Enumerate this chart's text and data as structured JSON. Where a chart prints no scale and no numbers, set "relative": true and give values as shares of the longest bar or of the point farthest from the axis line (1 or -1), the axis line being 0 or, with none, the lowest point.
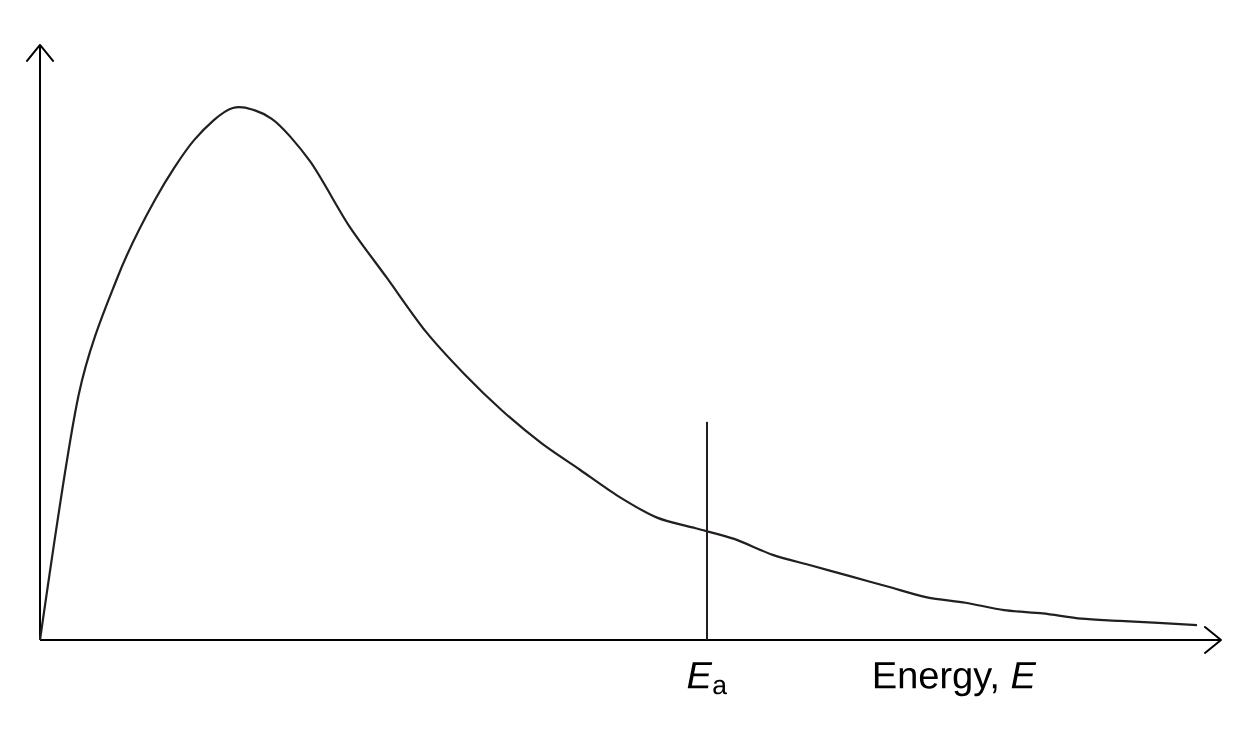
{
  "chart_data": {
    "type": "line",
    "relative": true,
    "color": "#231f20",
    "line_style": "solid",
    "categories": [
      null,
      null,
      null,
      null,
      null,
      null,
      null,
      null,
      null,
      null,
      null,
      null,
      null,
      null,
      null,
      null,
      null,
      null,
      null,
      null,
      null,
      null,
      null,
      null,
      null,
      null,
      null,
      null,
      null,
      null,
      null
    ],
    "values": [
      0,
      0.46,
      0.68,
      0.83,
      0.94,
      1.0,
      0.98,
      0.9,
      0.78,
      0.68,
      0.58,
      0.5,
      0.43,
      0.37,
      0.32,
      0.27,
      0.23,
      0.21,
      0.19,
      0.16,
      0.14,
      0.12,
      0.1,
      0.08,
      0.07,
      0.056,
      0.05,
      0.04,
      0.036,
      0.032,
      0.028
    ],
    "xlabel": "Energy, *E*",
    "annotations": [
      "*E*$_{a}$"
    ]
  }
}
